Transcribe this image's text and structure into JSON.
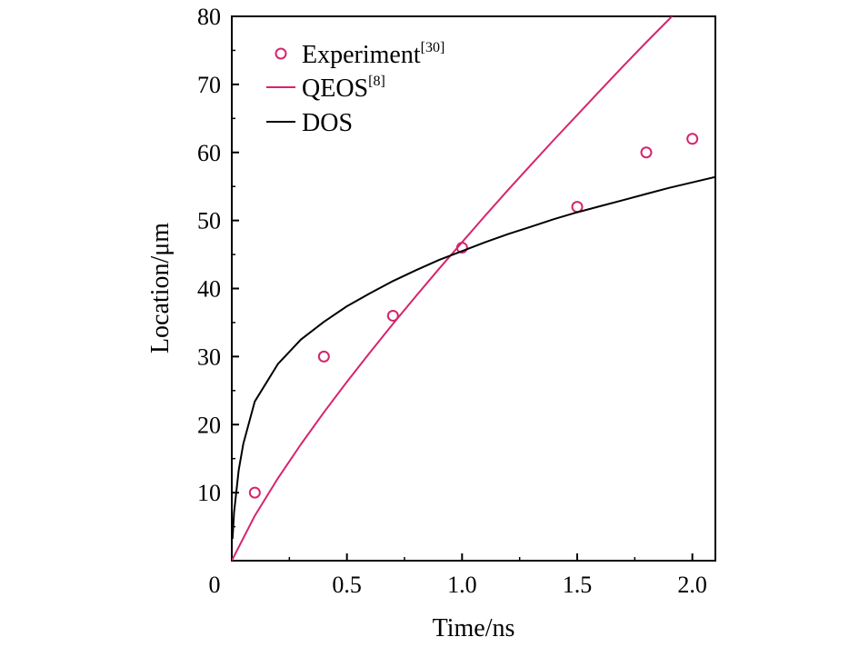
{
  "chart_data": {
    "type": "line",
    "title": "",
    "xlabel": "Time/ns",
    "ylabel": "Location/μm",
    "xlim": [
      0,
      2.1
    ],
    "ylim": [
      0,
      80
    ],
    "x_ticks": [
      0,
      0.5,
      1.0,
      1.5,
      2.0
    ],
    "x_tick_labels": [
      "0",
      "0.5",
      "1.0",
      "1.5",
      "2.0"
    ],
    "y_ticks": [
      10,
      20,
      30,
      40,
      50,
      60,
      70,
      80
    ],
    "y_tick_labels": [
      "10",
      "20",
      "30",
      "40",
      "50",
      "60",
      "70",
      "80"
    ],
    "grid": false,
    "legend_position": "top-left",
    "series": [
      {
        "name": "Experiment",
        "name_sup": "[30]",
        "kind": "scatter",
        "marker": "open-circle",
        "color": "#d6246e",
        "x": [
          0.1,
          0.4,
          0.7,
          1.0,
          1.5,
          1.8,
          2.0
        ],
        "y": [
          10,
          30,
          36,
          46,
          52,
          60,
          62
        ]
      },
      {
        "name": "QEOS",
        "name_sup": "[8]",
        "kind": "line",
        "color": "#d6246e",
        "x": [
          0,
          0.1,
          0.2,
          0.3,
          0.4,
          0.5,
          0.6,
          0.7,
          0.8,
          0.9,
          1.0,
          1.1,
          1.2,
          1.3,
          1.4,
          1.5,
          1.6,
          1.7,
          1.8,
          1.9,
          2.0,
          2.1
        ],
        "y": [
          0,
          6.6,
          12.1,
          17.1,
          21.8,
          26.3,
          30.6,
          34.8,
          38.9,
          42.9,
          46.8,
          50.7,
          54.5,
          58.2,
          61.9,
          65.5,
          69.1,
          72.7,
          76.2,
          79.6,
          83.1,
          86.5
        ]
      },
      {
        "name": "DOS",
        "name_sup": "",
        "kind": "line",
        "color": "#000000",
        "x": [
          0.003,
          0.01,
          0.03,
          0.05,
          0.1,
          0.2,
          0.3,
          0.4,
          0.5,
          0.6,
          0.7,
          0.8,
          0.9,
          1.0,
          1.1,
          1.2,
          1.3,
          1.4,
          1.5,
          1.6,
          1.7,
          1.8,
          1.9,
          2.0,
          2.1
        ],
        "y": [
          3.2,
          7.1,
          13.3,
          17.2,
          23.4,
          28.9,
          32.5,
          35.1,
          37.4,
          39.3,
          41.1,
          42.7,
          44.2,
          45.5,
          46.8,
          48.0,
          49.1,
          50.2,
          51.2,
          52.1,
          53.0,
          53.9,
          54.8,
          55.6,
          56.4
        ]
      }
    ]
  }
}
